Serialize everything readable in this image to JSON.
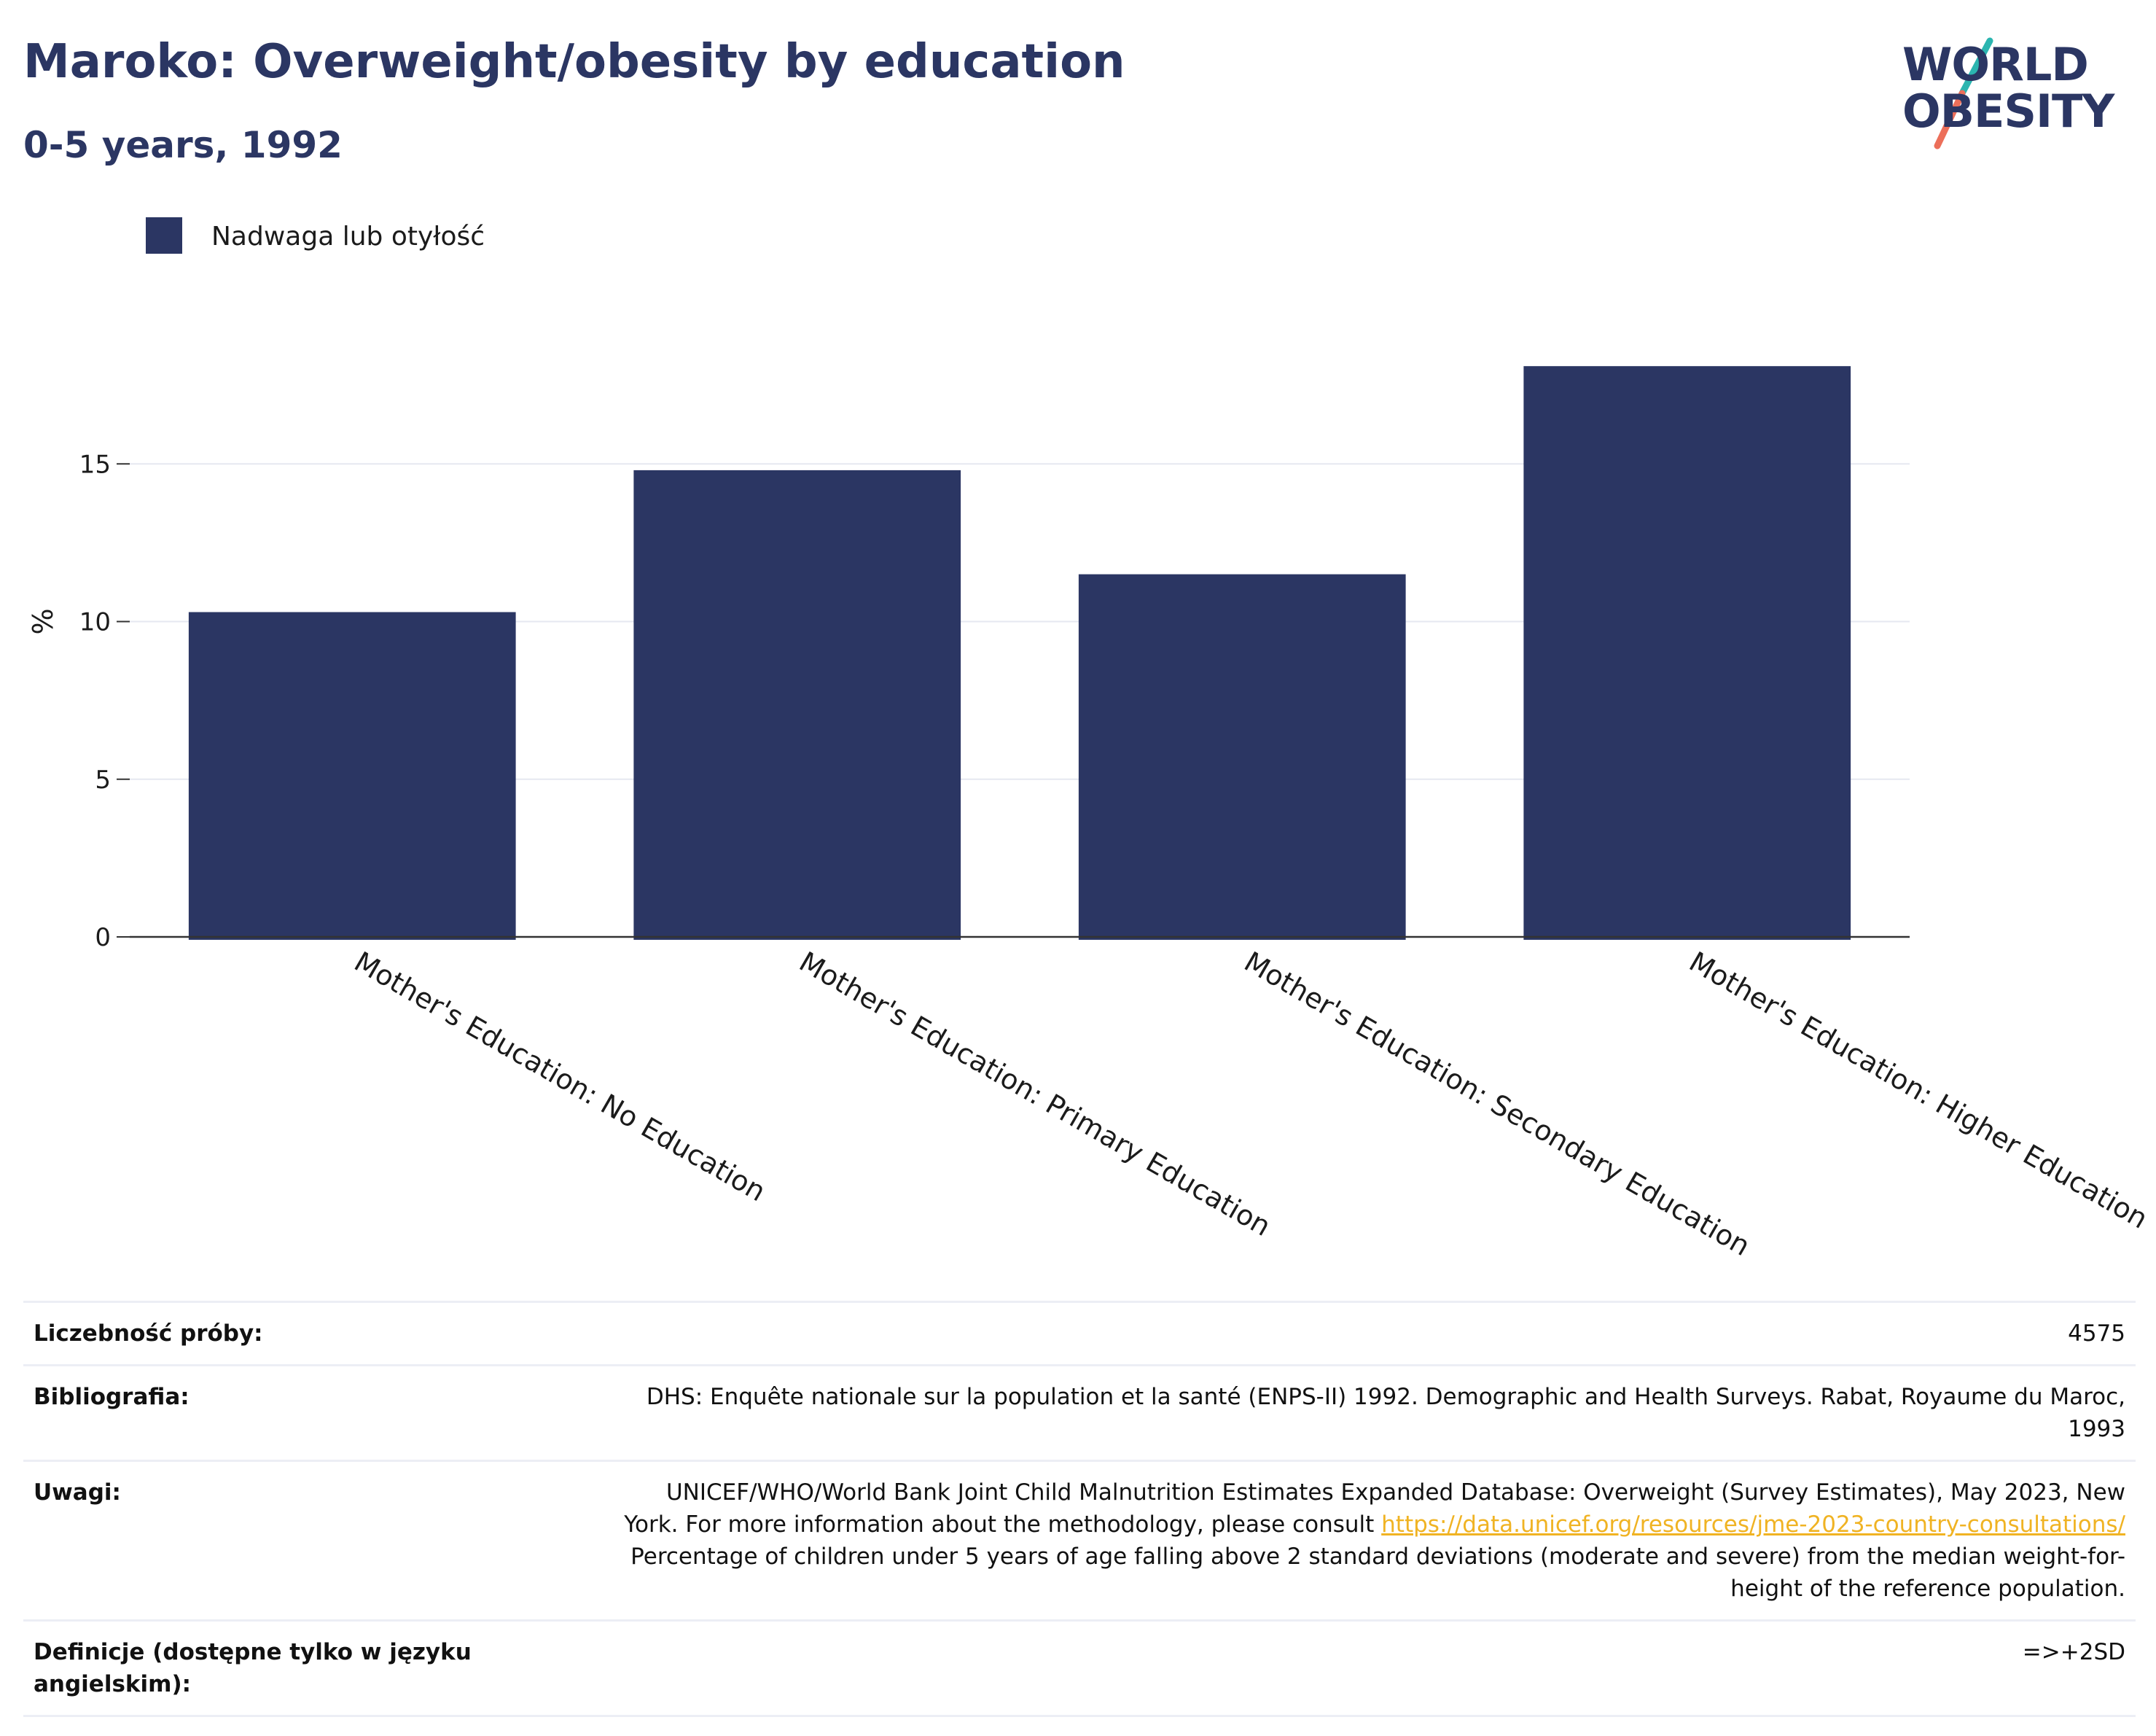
{
  "header": {
    "title": "Maroko: Overweight/obesity by education",
    "subtitle": "0-5 years, 1992"
  },
  "logo": {
    "line1": "WORLD",
    "line2": "OBESITY",
    "slash_color_top": "#2bb5b0",
    "slash_color_bottom": "#ec6f5a"
  },
  "colors": {
    "bar": "#2b3663",
    "title": "#2b3663",
    "grid": "#e6e8f0",
    "axis": "#333333",
    "link": "#f0b323"
  },
  "chart_data": {
    "type": "bar",
    "categories": [
      "Mother's Education: No Education",
      "Mother's Education: Primary Education",
      "Mother's Education: Secondary Education",
      "Mother's Education: Higher Education"
    ],
    "series": [
      {
        "name": "Nadwaga lub otyłość",
        "values": [
          10.3,
          14.8,
          11.5,
          18.1
        ]
      }
    ],
    "ylabel": "%",
    "ylim": [
      0,
      20
    ],
    "yticks": [
      0,
      5,
      10,
      15
    ],
    "grid": true,
    "legend_position": "top-left"
  },
  "meta": {
    "sample_label": "Liczebność próby:",
    "sample_value": "4575",
    "bibliography_label": "Bibliografia:",
    "bibliography_value": "DHS: Enquête nationale sur la population et la santé (ENPS-II) 1992. Demographic and Health Surveys. Rabat, Royaume du Maroc, 1993",
    "notes_label": "Uwagi:",
    "notes_value_pre": "UNICEF/WHO/World Bank Joint Child Malnutrition Estimates Expanded Database: Overweight (Survey Estimates), May 2023, New York. For more information about the methodology, please consult",
    "notes_link": "https://data.unicef.org/resources/jme-2023-country-consultations/",
    "notes_value_post": "Percentage of children under 5 years of age falling above 2 standard deviations (moderate and severe) from the median weight-for-height of the reference population.",
    "definitions_label": "Definicje (dostępne tylko w języku angielskim):",
    "definitions_value": "=>+2SD"
  }
}
